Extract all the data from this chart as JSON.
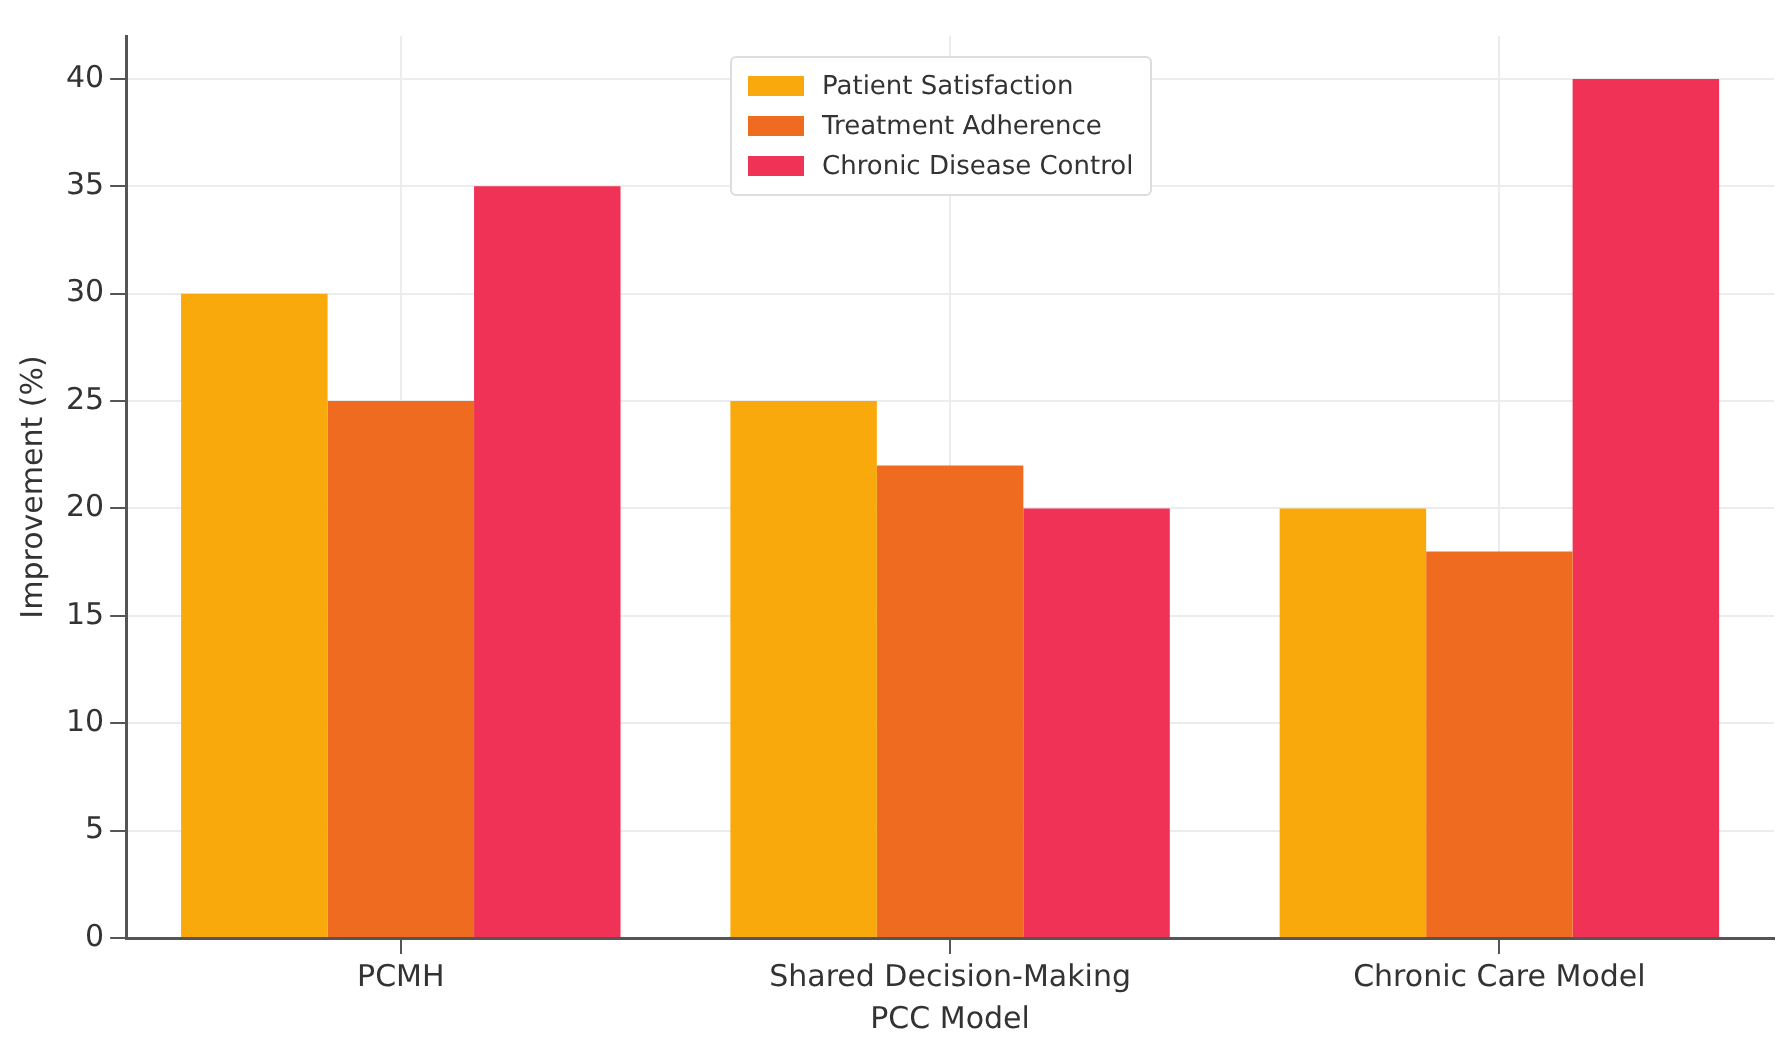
{
  "chart_data": {
    "type": "bar",
    "xlabel": "PCC Model",
    "ylabel": "Improvement (%)",
    "categories": [
      "PCMH",
      "Shared Decision-Making",
      "Chronic Care Model"
    ],
    "series": [
      {
        "name": "Patient Satisfaction",
        "color": "#f9a90b",
        "values": [
          30,
          25,
          20
        ]
      },
      {
        "name": "Treatment Adherence",
        "color": "#ee6b20",
        "values": [
          25,
          22,
          18
        ]
      },
      {
        "name": "Chronic Disease Control",
        "color": "#f03256",
        "values": [
          35,
          20,
          40
        ]
      }
    ],
    "ylim": [
      0,
      42
    ],
    "yticks": [
      0,
      5,
      10,
      15,
      20,
      25,
      30,
      35,
      40
    ],
    "grid": true,
    "legend": "top"
  }
}
